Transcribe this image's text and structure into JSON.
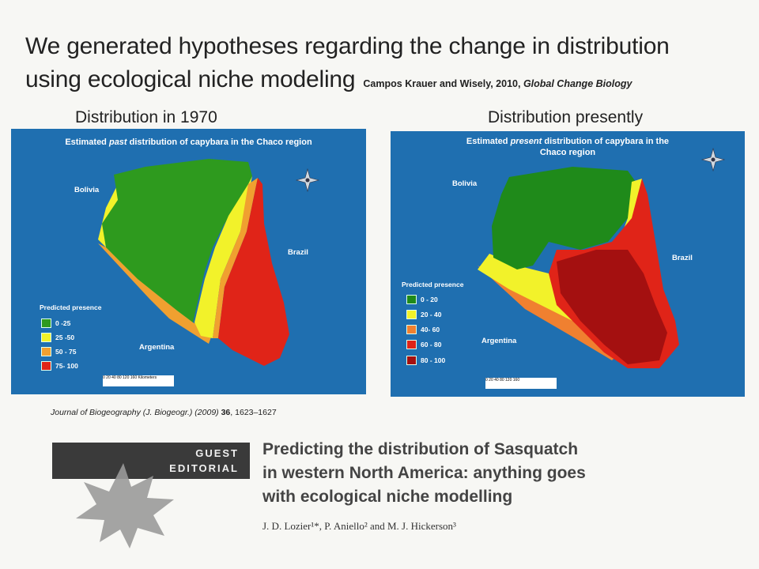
{
  "slide": {
    "title_line1": "We generated hypotheses regarding the change in distribution",
    "title_line2": "using ecological niche modeling",
    "citation_authors": "Campos Krauer and Wisely, 2010,",
    "citation_journal": "Global Change Biology"
  },
  "left_panel": {
    "caption": "Distribution in 1970",
    "map_title_pre": "Estimated ",
    "map_title_em": "past",
    "map_title_post": " distribution of capybara in the Chaco region",
    "labels": {
      "bolivia": "Bolivia",
      "brazil": "Brazil",
      "argentina": "Argentina"
    },
    "legend_title": "Predicted presence",
    "legend": [
      {
        "label": "0 -25",
        "color": "#2e9a1e"
      },
      {
        "label": "25 -50",
        "color": "#f2f22a"
      },
      {
        "label": "50 - 75",
        "color": "#f0a030"
      },
      {
        "label": "75- 100",
        "color": "#e02418"
      }
    ],
    "scale_text": "0 20 40   80   120   160 Kilometers"
  },
  "right_panel": {
    "caption": "Distribution presently",
    "map_title_pre": "Estimated ",
    "map_title_em": "present",
    "map_title_post": " distribution of capybara in the",
    "map_title_line2": "Chaco region",
    "labels": {
      "bolivia": "Bolivia",
      "brazil": "Brazil",
      "argentina": "Argentina"
    },
    "legend_title": "Predicted presence",
    "legend": [
      {
        "label": "0 - 20",
        "color": "#1f8a1a"
      },
      {
        "label": "20 - 40",
        "color": "#f2f22a"
      },
      {
        "label": "40- 60",
        "color": "#f08030"
      },
      {
        "label": "60 - 80",
        "color": "#e02418"
      },
      {
        "label": "80 - 100",
        "color": "#a41010"
      }
    ],
    "scale_text": "0 20 40   80   120   160"
  },
  "journal_ref": {
    "pre": "Journal of Biogeography (J. Biogeogr.) (2009) ",
    "volume": "36",
    "post": ", 1623–1627"
  },
  "editorial": {
    "badge_line1": "GUEST",
    "badge_line2": "EDITORIAL",
    "title_line1": "Predicting the distribution of Sasquatch",
    "title_line2": "in western North America: anything goes",
    "title_line3": "with ecological niche modelling",
    "authors": "J. D. Lozier¹*, P. Aniello² and M. J. Hickerson³"
  }
}
